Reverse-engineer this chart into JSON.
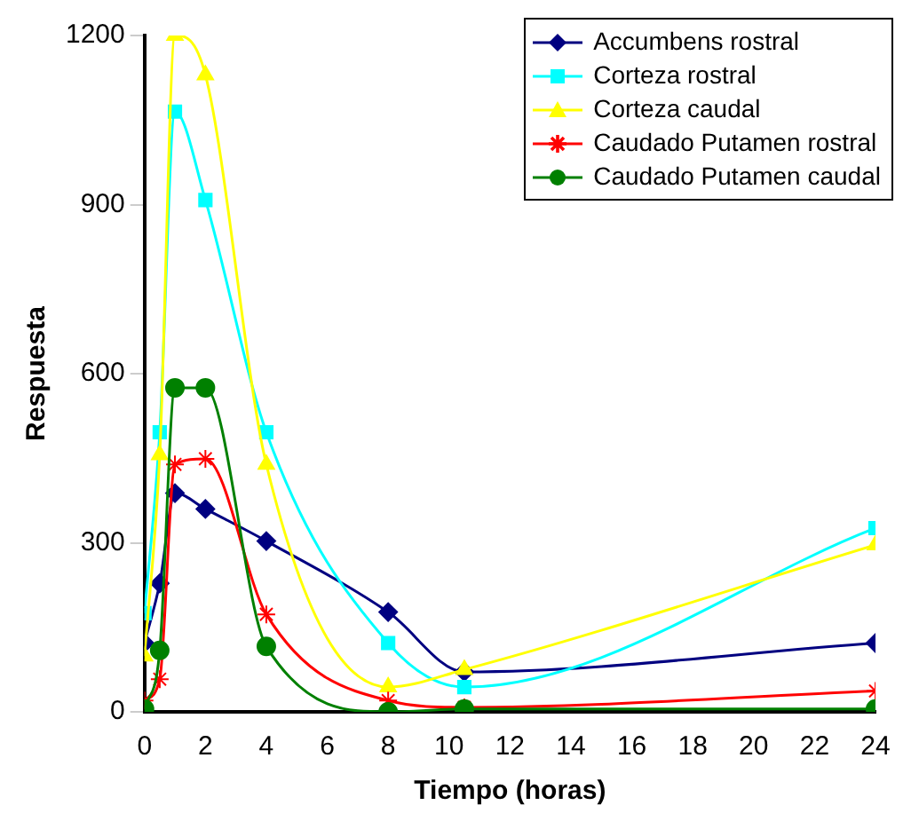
{
  "chart_data": {
    "type": "line",
    "xlabel": "Tiempo (horas)",
    "ylabel": "Respuesta",
    "x": [
      0,
      0.5,
      1,
      2,
      4,
      8,
      10.5,
      24
    ],
    "xlim": [
      0,
      24
    ],
    "xticks": [
      0,
      2,
      4,
      6,
      8,
      10,
      12,
      14,
      16,
      18,
      20,
      22,
      24
    ],
    "ylim": [
      0,
      1200
    ],
    "yticks": [
      0,
      300,
      600,
      900,
      1200
    ],
    "grid": false,
    "legend": "top right",
    "line_style": "solid",
    "series": [
      {
        "name": "Accumbens rostral",
        "color": "#000080",
        "marker": "diamond",
        "values": [
          122,
          228,
          388,
          360,
          303,
          177,
          71,
          122
        ]
      },
      {
        "name": "Corteza rostral",
        "color": "#00ffff",
        "marker": "square",
        "values": [
          175,
          496,
          1065,
          908,
          496,
          122,
          44,
          326
        ]
      },
      {
        "name": "Corteza caudal",
        "color": "#ffff00",
        "marker": "triangle",
        "values": [
          99,
          456,
          1200,
          1130,
          439,
          44,
          75,
          296
        ]
      },
      {
        "name": "Caudado Putamen rostral",
        "color": "#ff0000",
        "marker": "cross",
        "values": [
          20,
          58,
          439,
          449,
          173,
          20,
          8,
          37
        ]
      },
      {
        "name": "Caudado Putamen caudal",
        "color": "#008000",
        "marker": "circle",
        "values": [
          5,
          109,
          575,
          575,
          116,
          0,
          5,
          5
        ]
      }
    ]
  }
}
